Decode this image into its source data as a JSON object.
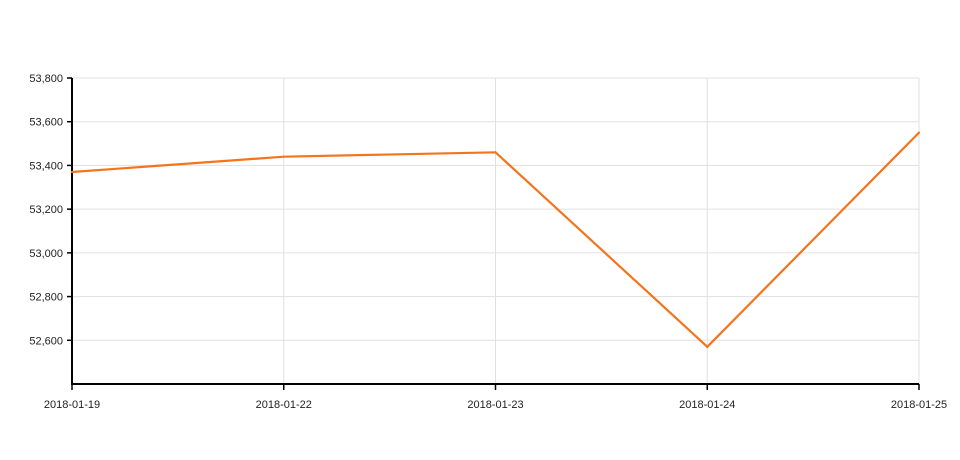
{
  "chart_data": {
    "type": "line",
    "title": "",
    "xlabel": "",
    "ylabel": "",
    "x": [
      "2018-01-19",
      "2018-01-22",
      "2018-01-23",
      "2018-01-24",
      "2018-01-25"
    ],
    "series": [
      {
        "values": [
          53370,
          53440,
          53460,
          52570,
          53550
        ],
        "color": "#f4741c"
      }
    ],
    "y_ticks": [
      "52,600",
      "52,800",
      "53,000",
      "53,200",
      "53,400",
      "53,600",
      "53,800"
    ],
    "ylim": [
      52400,
      53800
    ],
    "grid": true,
    "legend": "none"
  }
}
